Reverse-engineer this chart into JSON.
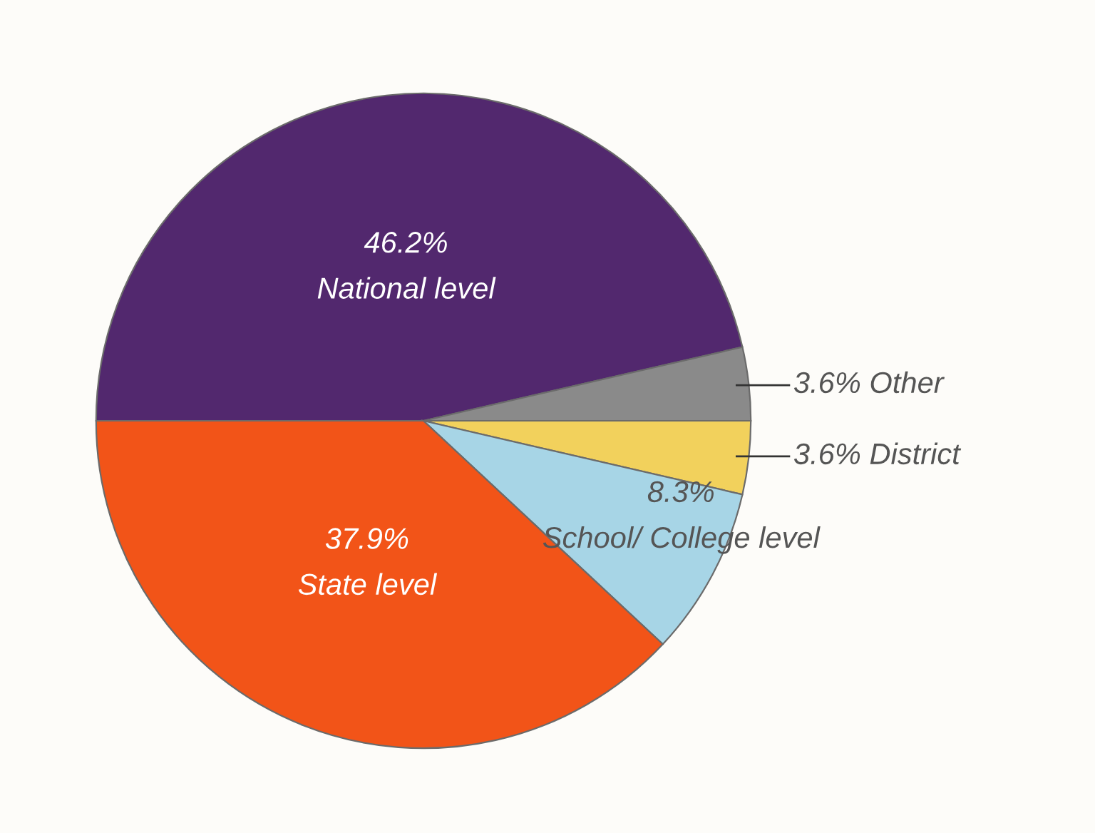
{
  "chart_data": {
    "type": "pie",
    "categories": [
      "National level",
      "Other",
      "District",
      "School/ College level",
      "State level"
    ],
    "values": [
      46.2,
      3.6,
      3.6,
      8.3,
      37.9
    ],
    "value_labels": [
      "46.2%",
      "3.6%",
      "3.6%",
      "8.3%",
      "37.9%"
    ],
    "colors": [
      "#52286e",
      "#8a8a8a",
      "#f2d15c",
      "#a7d5e6",
      "#f25418"
    ],
    "legend": false
  }
}
